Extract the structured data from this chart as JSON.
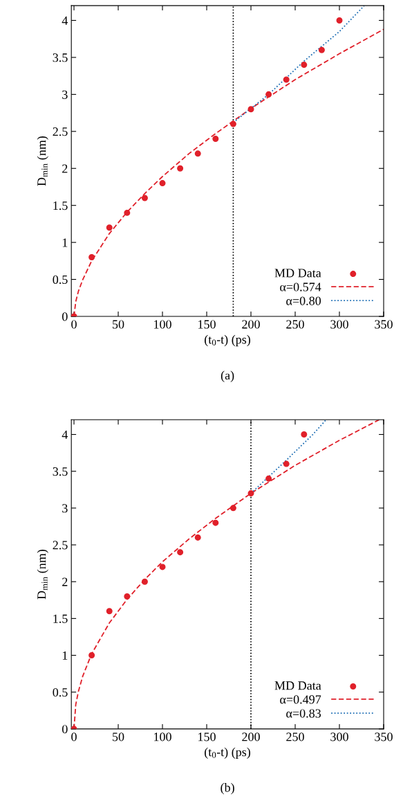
{
  "chart_data": [
    {
      "type": "scatter",
      "xlabel": "(t$_{0}$-t) (ps)",
      "ylabel": "D$_{min}$ (nm)",
      "annotations": [
        "(a)"
      ],
      "xlim": [
        -3,
        350
      ],
      "ylim": [
        0,
        4.2
      ],
      "xticks": [
        0,
        50,
        100,
        150,
        200,
        250,
        300,
        350
      ],
      "yticks": [
        0,
        0.5,
        1,
        1.5,
        2,
        2.5,
        3,
        3.5,
        4
      ],
      "legend": "bottom right",
      "grid": false,
      "ref_lines": [
        {
          "axis": "x",
          "value": 180,
          "color": "#000000",
          "line_style": "dotted"
        }
      ],
      "series": [
        {
          "name": "MD Data",
          "marker": "circle",
          "color": "#e0202a",
          "x": [
            0,
            20,
            40,
            60,
            80,
            100,
            120,
            140,
            160,
            180,
            200,
            220,
            240,
            260,
            280,
            300
          ],
          "values": [
            0,
            0.8,
            1.2,
            1.4,
            1.6,
            1.8,
            2.0,
            2.2,
            2.4,
            2.6,
            2.8,
            3.0,
            3.2,
            3.4,
            3.6,
            4.0
          ]
        },
        {
          "name": "α=0.574",
          "type": "line",
          "line_style": "dashed",
          "color": "#e0202a",
          "x": [
            0,
            2,
            5,
            10,
            20,
            40,
            60,
            80,
            100,
            130,
            160,
            200,
            250,
            300,
            350
          ],
          "values": [
            0,
            0.2,
            0.34,
            0.5,
            0.75,
            1.12,
            1.41,
            1.66,
            1.89,
            2.2,
            2.47,
            2.81,
            3.2,
            3.55,
            3.88
          ]
        },
        {
          "name": "α=0.80",
          "type": "line",
          "line_style": "dotted",
          "color": "#1f6fb5",
          "x": [
            180,
            220,
            260,
            300,
            328
          ],
          "values": [
            2.62,
            3.0,
            3.45,
            3.85,
            4.2
          ]
        }
      ]
    },
    {
      "type": "scatter",
      "xlabel": "(t$_{0}$-t) (ps)",
      "ylabel": "D$_{min}$ (nm)",
      "annotations": [
        "(b)"
      ],
      "xlim": [
        -3,
        350
      ],
      "ylim": [
        0,
        4.2
      ],
      "xticks": [
        0,
        50,
        100,
        150,
        200,
        250,
        300,
        350
      ],
      "yticks": [
        0,
        0.5,
        1,
        1.5,
        2,
        2.5,
        3,
        3.5,
        4
      ],
      "legend": "bottom right",
      "grid": false,
      "ref_lines": [
        {
          "axis": "x",
          "value": 200,
          "color": "#000000",
          "line_style": "dotted"
        }
      ],
      "series": [
        {
          "name": "MD Data",
          "marker": "circle",
          "color": "#e0202a",
          "x": [
            0,
            20,
            40,
            60,
            80,
            100,
            120,
            140,
            160,
            180,
            200,
            220,
            240,
            260
          ],
          "values": [
            0,
            1.0,
            1.6,
            1.8,
            2.0,
            2.2,
            2.4,
            2.6,
            2.8,
            3.0,
            3.2,
            3.4,
            3.6,
            4.0
          ]
        },
        {
          "name": "α=0.497",
          "type": "line",
          "line_style": "dashed",
          "color": "#e0202a",
          "x": [
            0,
            2,
            5,
            10,
            20,
            40,
            60,
            80,
            100,
            130,
            160,
            200,
            250,
            300,
            345
          ],
          "values": [
            0,
            0.33,
            0.51,
            0.72,
            1.02,
            1.44,
            1.76,
            2.03,
            2.27,
            2.58,
            2.86,
            3.2,
            3.58,
            3.92,
            4.2
          ]
        },
        {
          "name": "α=0.83",
          "type": "line",
          "line_style": "dotted",
          "color": "#1f6fb5",
          "x": [
            200,
            240,
            270,
            285
          ],
          "values": [
            3.2,
            3.65,
            4.0,
            4.2
          ]
        }
      ]
    }
  ]
}
